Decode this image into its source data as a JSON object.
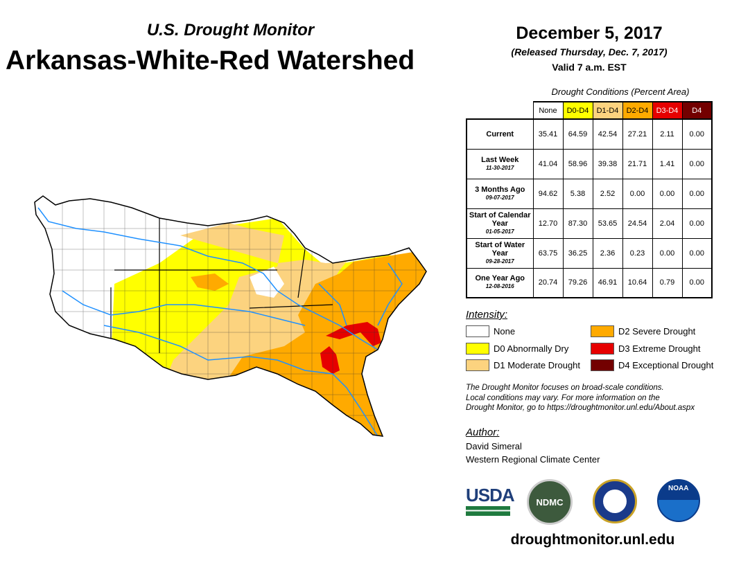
{
  "header": {
    "subtitle": "U.S. Drought Monitor",
    "title": "Arkansas-White-Red Watershed",
    "date": "December 5, 2017",
    "released": "(Released Thursday, Dec. 7, 2017)",
    "valid": "Valid 7 a.m. EST"
  },
  "table": {
    "caption": "Drought Conditions (Percent Area)",
    "columns": [
      {
        "label": "None",
        "color": "#ffffff",
        "text": "#000"
      },
      {
        "label": "D0-D4",
        "color": "#ffff00",
        "text": "#000"
      },
      {
        "label": "D1-D4",
        "color": "#fcd37f",
        "text": "#000"
      },
      {
        "label": "D2-D4",
        "color": "#ffaa00",
        "text": "#000"
      },
      {
        "label": "D3-D4",
        "color": "#e60000",
        "text": "#fff"
      },
      {
        "label": "D4",
        "color": "#730000",
        "text": "#fff"
      }
    ],
    "rows": [
      {
        "label": "Current",
        "date": "",
        "values": [
          "35.41",
          "64.59",
          "42.54",
          "27.21",
          "2.11",
          "0.00"
        ]
      },
      {
        "label": "Last Week",
        "date": "11-30-2017",
        "values": [
          "41.04",
          "58.96",
          "39.38",
          "21.71",
          "1.41",
          "0.00"
        ]
      },
      {
        "label": "3 Months Ago",
        "date": "09-07-2017",
        "values": [
          "94.62",
          "5.38",
          "2.52",
          "0.00",
          "0.00",
          "0.00"
        ]
      },
      {
        "label": "Start of Calendar Year",
        "date": "01-05-2017",
        "values": [
          "12.70",
          "87.30",
          "53.65",
          "24.54",
          "2.04",
          "0.00"
        ]
      },
      {
        "label": "Start of Water Year",
        "date": "09-28-2017",
        "values": [
          "63.75",
          "36.25",
          "2.36",
          "0.23",
          "0.00",
          "0.00"
        ]
      },
      {
        "label": "One Year Ago",
        "date": "12-08-2016",
        "values": [
          "20.74",
          "79.26",
          "46.91",
          "10.64",
          "0.79",
          "0.00"
        ]
      }
    ]
  },
  "legend": {
    "title": "Intensity:",
    "items": [
      {
        "label": "None",
        "color": "#ffffff"
      },
      {
        "label": "D0 Abnormally Dry",
        "color": "#ffff00"
      },
      {
        "label": "D1 Moderate Drought",
        "color": "#fcd37f"
      },
      {
        "label": "D2 Severe Drought",
        "color": "#ffaa00"
      },
      {
        "label": "D3 Extreme Drought",
        "color": "#e60000"
      },
      {
        "label": "D4 Exceptional Drought",
        "color": "#730000"
      }
    ]
  },
  "note": [
    "The Drought Monitor focuses on broad-scale conditions.",
    "Local conditions may vary. For more information on the",
    "Drought Monitor, go to https://droughtmonitor.unl.edu/About.aspx"
  ],
  "author": {
    "label": "Author:",
    "name": "David Simeral",
    "org": "Western Regional Climate Center"
  },
  "logos": {
    "usda": "USDA",
    "ndmc": "NDMC",
    "noaa": "NOAA"
  },
  "footer_url": "droughtmonitor.unl.edu"
}
